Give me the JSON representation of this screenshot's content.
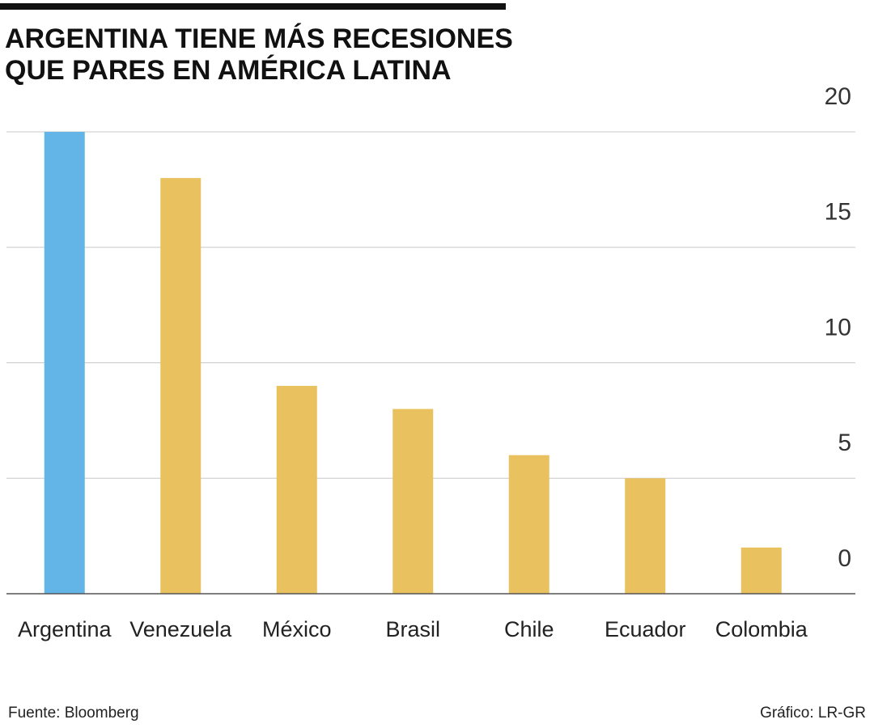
{
  "chart_data": {
    "type": "bar",
    "title": "ARGENTINA TIENE MÁS RECESIONES",
    "subtitle": "QUE PARES EN AMÉRICA LATINA",
    "categories": [
      "Argentina",
      "Venezuela",
      "México",
      "Brasil",
      "Chile",
      "Ecuador",
      "Colombia"
    ],
    "values": [
      20,
      18,
      9,
      8,
      6,
      5,
      2
    ],
    "colors": [
      "#62b5e6",
      "#e9c25f",
      "#e9c25f",
      "#e9c25f",
      "#e9c25f",
      "#e9c25f",
      "#e9c25f"
    ],
    "ylim": [
      0,
      20
    ],
    "yticks": [
      0,
      5,
      10,
      15,
      20
    ],
    "grid": true,
    "source": "Fuente: Bloomberg",
    "credit": "Gráfico: LR-GR"
  }
}
